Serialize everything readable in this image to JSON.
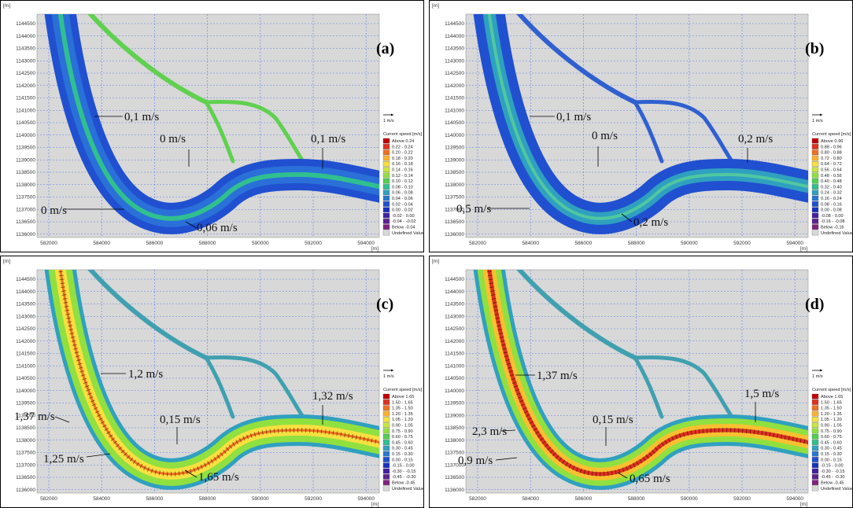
{
  "axes": {
    "unit": "[m]",
    "xticks": [
      "582000",
      "584000",
      "586000",
      "588000",
      "590000",
      "592000",
      "594000"
    ],
    "yticks": [
      "1144500",
      "1144000",
      "1143500",
      "1143000",
      "1142500",
      "1142000",
      "1141500",
      "1141000",
      "1140500",
      "1140000",
      "1139500",
      "1139000",
      "1138500",
      "1138000",
      "1137500",
      "1137000",
      "1136500",
      "1136000"
    ]
  },
  "legend_title": "Current speed [m/s]",
  "scale_label": "1 m/s",
  "legend_colors": [
    "#c00000",
    "#e03020",
    "#f07020",
    "#f8b030",
    "#f8e040",
    "#c8e840",
    "#90e040",
    "#50d050",
    "#30c090",
    "#30a0c0",
    "#2878d0",
    "#2050d0",
    "#1830c0",
    "#4020a0",
    "#602090",
    "#802080",
    "#d8d8d8"
  ],
  "panels": [
    {
      "label": "(a)",
      "legend_entries": [
        "Above 0.24",
        "0.22 - 0.24",
        "0.20 - 0.22",
        "0.18 - 0.20",
        "0.16 - 0.18",
        "0.14 - 0.16",
        "0.12 - 0.14",
        "0.10 - 0.12",
        "0.08 - 0.10",
        "0.06 - 0.08",
        "0.04 - 0.06",
        "0.02 - 0.04",
        "0.00 - 0.02",
        "-0.02 - 0.00",
        "-0.04 - -0.02",
        "Below -0.04",
        "Undefined Value"
      ],
      "annotations": [
        {
          "text": "0,1 m/s"
        },
        {
          "text": "0 m/s"
        },
        {
          "text": "0,1 m/s"
        },
        {
          "text": "0 m/s"
        },
        {
          "text": "0,06 m/s"
        }
      ]
    },
    {
      "label": "(b)",
      "legend_entries": [
        "Above 0.96",
        "0.88 - 0.96",
        "0.80 - 0.88",
        "0.72 - 0.80",
        "0.64 - 0.72",
        "0.56 - 0.64",
        "0.48 - 0.56",
        "0.40 - 0.48",
        "0.32 - 0.40",
        "0.24 - 0.32",
        "0.16 - 0.24",
        "0.08 - 0.16",
        "0.00 - 0.08",
        "-0.08 - 0.00",
        "-0.16 - -0.08",
        "Below -0.16",
        "Undefined Value"
      ],
      "annotations": [
        {
          "text": "0,1 m/s"
        },
        {
          "text": "0 m/s"
        },
        {
          "text": "0,2 m/s"
        },
        {
          "text": "0,5 m/s"
        },
        {
          "text": "0,2 m/s"
        }
      ]
    },
    {
      "label": "(c)",
      "legend_entries": [
        "Above 1.65",
        "1.50 - 1.65",
        "1.35 - 1.50",
        "1.20 - 1.35",
        "1.05 - 1.20",
        "0.90 - 1.05",
        "0.75 - 0.90",
        "0.60 - 0.75",
        "0.45 - 0.60",
        "0.30 - 0.45",
        "0.15 - 0.30",
        "0.00 - 0.15",
        "-0.15 - 0.00",
        "-0.30 - -0.15",
        "-0.45 - -0.30",
        "Below -0.45",
        "Undefined Value"
      ],
      "annotations": [
        {
          "text": "1,2 m/s"
        },
        {
          "text": "1,37 m/s"
        },
        {
          "text": "0,15 m/s"
        },
        {
          "text": "1,32 m/s"
        },
        {
          "text": "1,25 m/s"
        },
        {
          "text": "1,65 m/s"
        }
      ]
    },
    {
      "label": "(d)",
      "legend_entries": [
        "Above 1.65",
        "1.50 - 1.65",
        "1.35 - 1.50",
        "1.20 - 1.35",
        "1.05 - 1.20",
        "0.90 - 1.05",
        "0.75 - 0.90",
        "0.60 - 0.75",
        "0.45 - 0.60",
        "0.30 - 0.45",
        "0.15 - 0.30",
        "0.00 - 0.15",
        "-0.15 - 0.00",
        "-0.30 - -0.15",
        "-0.45 - -0.30",
        "Below -0.45",
        "Undefined Value"
      ],
      "annotations": [
        {
          "text": "1,37 m/s"
        },
        {
          "text": "0,15 m/s"
        },
        {
          "text": "1,5 m/s"
        },
        {
          "text": "2,3 m/s",
          "color": "#e02020"
        },
        {
          "text": "0,9 m/s"
        },
        {
          "text": "0,65 m/s"
        }
      ]
    }
  ]
}
